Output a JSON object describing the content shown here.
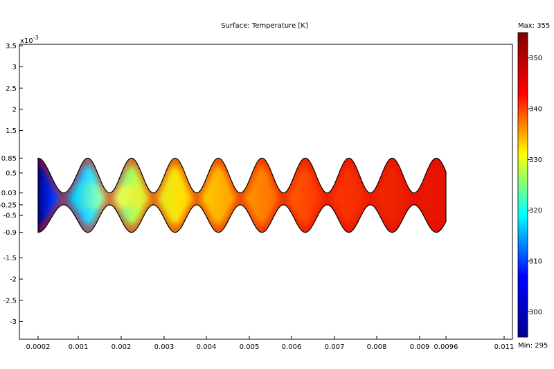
{
  "chart_data": {
    "type": "heatmap",
    "title": "Surface: Temperature [K]",
    "x_scale_note": "x10-3",
    "x_ticks": [
      0.0002,
      0.001,
      0.002,
      0.003,
      0.004,
      0.005,
      0.006,
      0.007,
      0.008,
      0.009,
      0.0096,
      0.011
    ],
    "x_tick_labels": [
      "0.0002",
      "0.001",
      "0.002",
      "0.003",
      "0.004",
      "0.005",
      "0.006",
      "0.007",
      "0.008",
      "0.009",
      "0.0096",
      "0.011"
    ],
    "y_ticks": [
      3.5,
      3,
      2.5,
      2,
      1.5,
      0.85,
      0.5,
      0.03,
      -0.25,
      -0.5,
      -0.9,
      -1.5,
      -2,
      -2.5,
      -3
    ],
    "y_tick_labels": [
      "3.5",
      "3",
      "2.5",
      "2",
      "1.5",
      "0.85",
      "0.5",
      "0.03",
      "-0.25",
      "-0.5",
      "-0.9",
      "-1.5",
      "-2",
      "-2.5",
      "-3"
    ],
    "xlim": [
      0.0002,
      0.011
    ],
    "ylim": [
      -3.4,
      3.5
    ],
    "domain_x": [
      0.0002,
      0.0096
    ],
    "wave_period": 0.00102,
    "top_wall_range": [
      0.03,
      0.85
    ],
    "bottom_wall_range": [
      -0.9,
      -0.25
    ],
    "colorbar": {
      "min": 295,
      "max": 355,
      "min_label": "Min: 295",
      "max_label": "Max: 355",
      "ticks": [
        300,
        310,
        320,
        330,
        340,
        350
      ],
      "tick_labels": [
        "300",
        "310",
        "320",
        "330",
        "340",
        "350"
      ],
      "colormap": [
        "#00008f",
        "#0000ff",
        "#00ffff",
        "#ffff00",
        "#ff0000",
        "#800000"
      ]
    }
  }
}
